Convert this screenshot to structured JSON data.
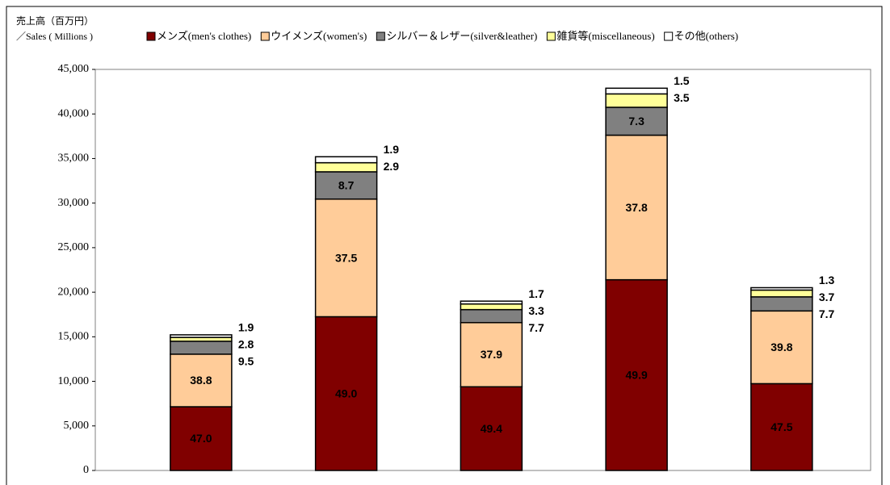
{
  "chart_data": {
    "type": "stacked_bar",
    "title": "売上高（百万円）",
    "subtitle": "／Sales ( Millions )",
    "categories": [
      null,
      null,
      null,
      null,
      null
    ],
    "series": [
      {
        "name": "メンズ(men's clothes)",
        "color": "#800000",
        "values": [
          7150,
          17250,
          9390,
          21400,
          9740
        ],
        "share_labels": [
          "47.0",
          "49.0",
          "49.4",
          "49.9",
          "47.5"
        ]
      },
      {
        "name": "ウイメンズ(women's)",
        "color": "#ffcc99",
        "values": [
          5900,
          13200,
          7200,
          16220,
          8160
        ],
        "share_labels": [
          "38.8",
          "37.5",
          "37.9",
          "37.8",
          "39.8"
        ]
      },
      {
        "name": "シルバー＆レザー(silver&leather)",
        "color": "#808080",
        "values": [
          1450,
          3060,
          1460,
          3130,
          1580
        ],
        "share_labels": [
          "9.5",
          "8.7",
          "7.7",
          "7.3",
          "7.7"
        ]
      },
      {
        "name": "雑貨等(miscellaneous)",
        "color": "#ffff99",
        "values": [
          430,
          1020,
          630,
          1500,
          760
        ],
        "share_labels": [
          "2.8",
          "2.9",
          "3.3",
          "3.5",
          "3.7"
        ]
      },
      {
        "name": "その他(others)",
        "color": "#ffffff",
        "values": [
          290,
          670,
          320,
          640,
          270
        ],
        "share_labels": [
          "1.9",
          "1.9",
          "1.7",
          "1.5",
          "1.3"
        ]
      }
    ],
    "ylim": [
      0,
      45000
    ],
    "yticks": [
      0,
      {
        "value": 5000,
        "label": "5,000"
      },
      {
        "value": 10000,
        "label": "10,000"
      },
      {
        "value": 15000,
        "label": "15,000"
      },
      {
        "value": 20000,
        "label": "20,000"
      },
      {
        "value": 25000,
        "label": "25,000"
      },
      {
        "value": 30000,
        "label": "30,000"
      },
      {
        "value": 35000,
        "label": "35,000"
      },
      {
        "value": 40000,
        "label": "40,000"
      },
      {
        "value": 45000,
        "label": "45,000"
      }
    ],
    "grid": false,
    "legend": "top"
  }
}
